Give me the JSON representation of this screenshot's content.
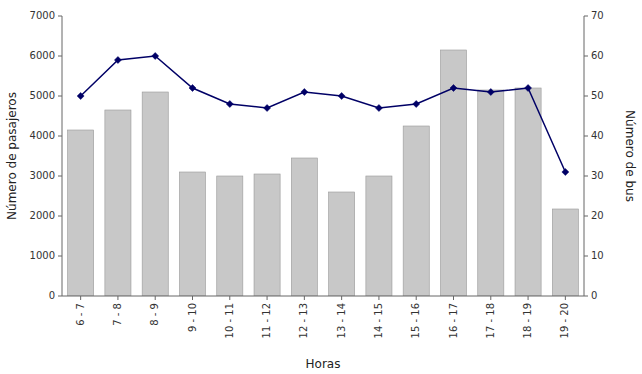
{
  "chart_data": {
    "type": "bar",
    "xlabel": "Horas",
    "ylabel": "Número de pasajeros",
    "y2label": "Número de bus",
    "categories": [
      "6 - 7",
      "7 - 8",
      "8 - 9",
      "9 - 10",
      "10 - 11",
      "11 - 12",
      "12 - 13",
      "13 - 14",
      "14 - 15",
      "15 - 16",
      "16 - 17",
      "17 - 18",
      "18 - 19",
      "19 - 20"
    ],
    "series": [
      {
        "type": "bar",
        "color": "#c8c8c8",
        "values": [
          4150,
          4650,
          5100,
          3100,
          3000,
          3050,
          3450,
          2600,
          3000,
          4250,
          6150,
          5150,
          5200,
          2175
        ]
      },
      {
        "type": "line",
        "axis": "y2",
        "color": "#000066",
        "marker": "diamond",
        "values": [
          50,
          59,
          60,
          52,
          48,
          47,
          51,
          50,
          47,
          48,
          52,
          51,
          52,
          31
        ]
      }
    ],
    "ylim": [
      0,
      7000
    ],
    "yticks": [
      0,
      1000,
      2000,
      3000,
      4000,
      5000,
      6000,
      7000
    ],
    "y2lim": [
      0,
      70
    ],
    "y2ticks": [
      0,
      10,
      20,
      30,
      40,
      50,
      60,
      70
    ],
    "grid": false
  }
}
